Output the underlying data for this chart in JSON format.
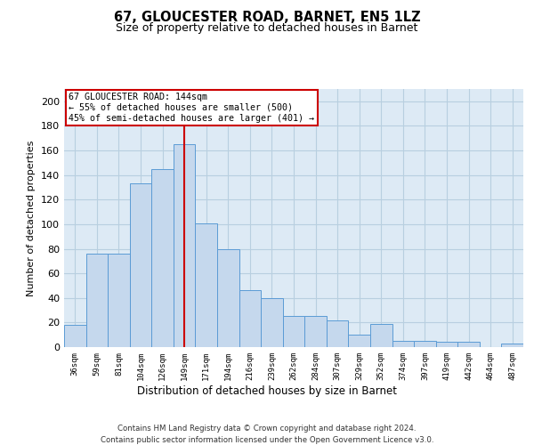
{
  "title": "67, GLOUCESTER ROAD, BARNET, EN5 1LZ",
  "subtitle": "Size of property relative to detached houses in Barnet",
  "xlabel": "Distribution of detached houses by size in Barnet",
  "ylabel": "Number of detached properties",
  "categories": [
    "36sqm",
    "59sqm",
    "81sqm",
    "104sqm",
    "126sqm",
    "149sqm",
    "171sqm",
    "194sqm",
    "216sqm",
    "239sqm",
    "262sqm",
    "284sqm",
    "307sqm",
    "329sqm",
    "352sqm",
    "374sqm",
    "397sqm",
    "419sqm",
    "442sqm",
    "464sqm",
    "487sqm"
  ],
  "values": [
    18,
    76,
    76,
    133,
    145,
    165,
    101,
    80,
    46,
    40,
    25,
    25,
    22,
    10,
    19,
    5,
    5,
    4,
    4,
    0,
    3
  ],
  "bar_color": "#c5d8ed",
  "bar_edge_color": "#5b9bd5",
  "marker_bar_index": 5,
  "marker_line_color": "#cc0000",
  "annotation_line1": "67 GLOUCESTER ROAD: 144sqm",
  "annotation_line2": "← 55% of detached houses are smaller (500)",
  "annotation_line3": "45% of semi-detached houses are larger (401) →",
  "annotation_box_color": "#cc0000",
  "ylim": [
    0,
    210
  ],
  "yticks": [
    0,
    20,
    40,
    60,
    80,
    100,
    120,
    140,
    160,
    180,
    200
  ],
  "grid_color": "#b8cfe0",
  "background_color": "#ddeaf5",
  "footer_line1": "Contains HM Land Registry data © Crown copyright and database right 2024.",
  "footer_line2": "Contains public sector information licensed under the Open Government Licence v3.0.",
  "title_fontsize": 10.5,
  "subtitle_fontsize": 9
}
